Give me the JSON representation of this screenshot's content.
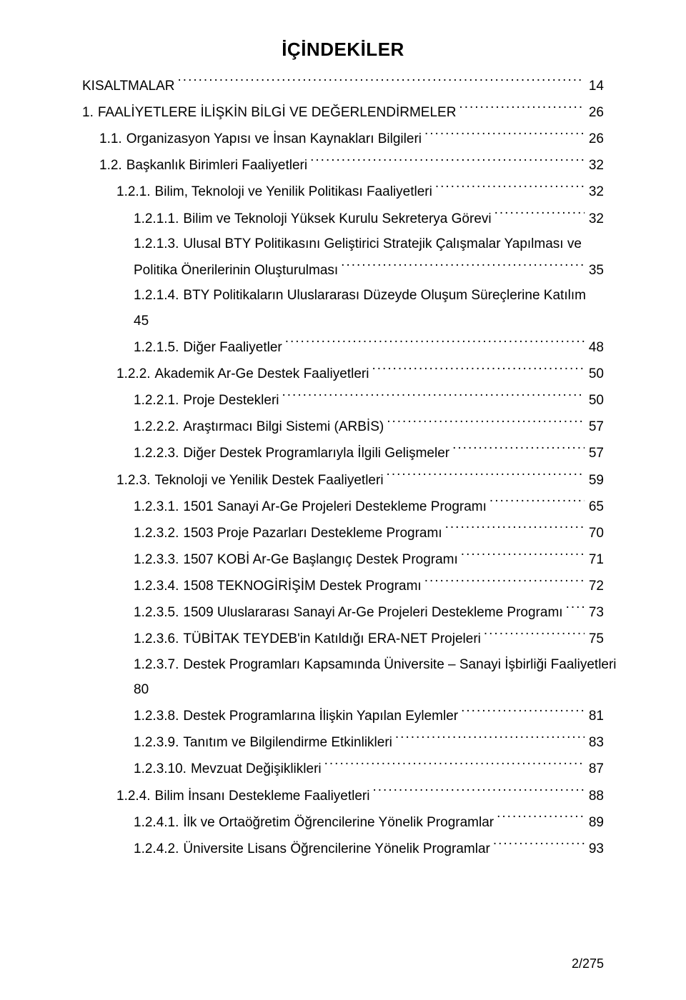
{
  "title": "İÇİNDEKİLER",
  "footer": "2/275",
  "colors": {
    "background": "#ffffff",
    "text": "#000000"
  },
  "typography": {
    "title_fontsize": 26,
    "body_fontsize": 19,
    "footer_fontsize": 18,
    "font_family": "Arial"
  },
  "entries": [
    {
      "indent": 0,
      "num": "",
      "label": "KISALTMALAR",
      "page": "14"
    },
    {
      "indent": 0,
      "num": "1.",
      "label": "FAALİYETLERE İLİŞKİN BİLGİ VE DEĞERLENDİRMELER",
      "page": "26"
    },
    {
      "indent": 1,
      "num": "1.1.",
      "label": "Organizasyon Yapısı ve İnsan Kaynakları Bilgileri",
      "page": "26"
    },
    {
      "indent": 1,
      "num": "1.2.",
      "label": "Başkanlık Birimleri Faaliyetleri",
      "page": "32"
    },
    {
      "indent": 2,
      "num": "1.2.1.",
      "label": "Bilim, Teknoloji ve Yenilik Politikası Faaliyetleri",
      "page": "32"
    },
    {
      "indent": 3,
      "num": "1.2.1.1.",
      "label": "Bilim ve Teknoloji Yüksek Kurulu Sekreterya Görevi",
      "page": "32"
    },
    {
      "indent": 3,
      "num": "1.2.1.3.",
      "label": "Ulusal BTY Politikasını Geliştirici Stratejik Çalışmalar Yapılması ve",
      "page": "",
      "nopage": true
    },
    {
      "indent": 3,
      "num": "",
      "label": "Politika Önerilerinin Oluşturulması",
      "page": "35"
    },
    {
      "indent": 3,
      "num": "1.2.1.4.",
      "label": "BTY Politikaların Uluslararası Düzeyde Oluşum Süreçlerine Katılım",
      "page": "",
      "nopage": true
    },
    {
      "indent": 3,
      "num": "",
      "label": "45",
      "page": "",
      "nopage": true
    },
    {
      "indent": 3,
      "num": "1.2.1.5.",
      "label": "Diğer Faaliyetler",
      "page": "48"
    },
    {
      "indent": 2,
      "num": "1.2.2.",
      "label": "Akademik Ar-Ge Destek Faaliyetleri",
      "page": "50"
    },
    {
      "indent": 3,
      "num": "1.2.2.1.",
      "label": "Proje Destekleri",
      "page": "50"
    },
    {
      "indent": 3,
      "num": "1.2.2.2.",
      "label": "Araştırmacı Bilgi Sistemi (ARBİS)",
      "page": "57"
    },
    {
      "indent": 3,
      "num": "1.2.2.3.",
      "label": "Diğer Destek Programlarıyla İlgili Gelişmeler",
      "page": "57"
    },
    {
      "indent": 2,
      "num": "1.2.3.",
      "label": "Teknoloji ve Yenilik Destek Faaliyetleri",
      "page": "59"
    },
    {
      "indent": 3,
      "num": "1.2.3.1.",
      "label": "1501 Sanayi Ar-Ge Projeleri Destekleme Programı",
      "page": "65"
    },
    {
      "indent": 3,
      "num": "1.2.3.2.",
      "label": "1503  Proje Pazarları Destekleme Programı",
      "page": "70"
    },
    {
      "indent": 3,
      "num": "1.2.3.3.",
      "label": "1507 KOBİ Ar-Ge Başlangıç Destek Programı",
      "page": "71"
    },
    {
      "indent": 3,
      "num": "1.2.3.4.",
      "label": "1508 TEKNOGİRİŞİM Destek Programı",
      "page": "72"
    },
    {
      "indent": 3,
      "num": "1.2.3.5.",
      "label": "1509 Uluslararası Sanayi Ar-Ge Projeleri Destekleme Programı",
      "page": "73"
    },
    {
      "indent": 3,
      "num": "1.2.3.6.",
      "label": "TÜBİTAK TEYDEB'in Katıldığı ERA-NET Projeleri",
      "page": "75"
    },
    {
      "indent": 3,
      "num": "1.2.3.7.",
      "label": "Destek Programları Kapsamında Üniversite – Sanayi İşbirliği Faaliyetleri",
      "page": "",
      "nopage": true
    },
    {
      "indent": 3,
      "num": "",
      "label": "80",
      "page": "",
      "nopage": true
    },
    {
      "indent": 3,
      "num": "1.2.3.8.",
      "label": "Destek Programlarına İlişkin Yapılan Eylemler",
      "page": "81"
    },
    {
      "indent": 3,
      "num": "1.2.3.9.",
      "label": "Tanıtım ve Bilgilendirme Etkinlikleri",
      "page": "83"
    },
    {
      "indent": 3,
      "num": "1.2.3.10.",
      "label": "Mevzuat Değişiklikleri",
      "page": "87"
    },
    {
      "indent": 2,
      "num": "1.2.4.",
      "label": "Bilim İnsanı Destekleme Faaliyetleri",
      "page": "88"
    },
    {
      "indent": 3,
      "num": "1.2.4.1.",
      "label": "İlk ve Ortaöğretim Öğrencilerine Yönelik Programlar",
      "page": "89"
    },
    {
      "indent": 3,
      "num": "1.2.4.2.",
      "label": "Üniversite Lisans Öğrencilerine Yönelik Programlar",
      "page": "93"
    }
  ]
}
